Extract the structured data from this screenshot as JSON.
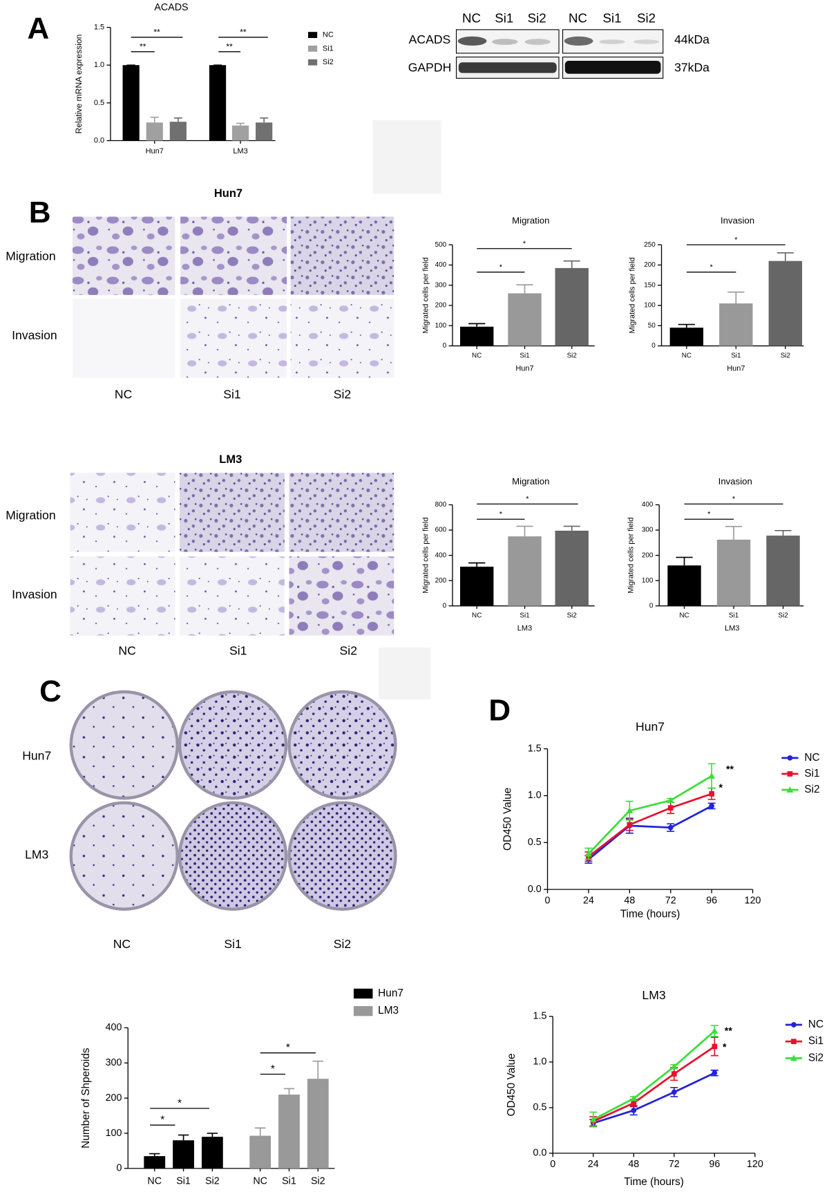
{
  "figure": {
    "panels": [
      "A",
      "B",
      "C",
      "D"
    ],
    "blot": {
      "lanes": [
        "NC",
        "Si1",
        "Si2",
        "NC",
        "Si1",
        "Si2"
      ],
      "proteins": [
        "ACADS",
        "GAPDH"
      ],
      "sizes": [
        "44kDa",
        "37kDa"
      ]
    },
    "transwell": [
      {
        "cell": "Hun7",
        "rows": [
          "Migration",
          "Invasion"
        ],
        "columns": [
          "NC",
          "Si1",
          "Si2"
        ]
      },
      {
        "cell": "LM3",
        "rows": [
          "Migration",
          "Invasion"
        ],
        "columns": [
          "NC",
          "Si1",
          "Si2"
        ]
      }
    ],
    "colony": {
      "rows": [
        "Hun7",
        "LM3"
      ],
      "columns": [
        "NC",
        "Si1",
        "Si2"
      ]
    }
  },
  "chart_data": [
    {
      "type": "bar",
      "title": "ACADS",
      "ylabel": "Relative mRNA  expression",
      "categories": [
        "Hun7",
        "LM3"
      ],
      "series": [
        {
          "name": "NC",
          "color": "#000000",
          "values": [
            1.0,
            1.0
          ],
          "errors": [
            0,
            0
          ]
        },
        {
          "name": "Si1",
          "color": "#a0a0a0",
          "values": [
            0.24,
            0.2
          ],
          "errors": [
            0.07,
            0.03
          ]
        },
        {
          "name": "Si2",
          "color": "#707070",
          "values": [
            0.25,
            0.24
          ],
          "errors": [
            0.05,
            0.06
          ]
        }
      ],
      "ylim": [
        0,
        1.5
      ],
      "yticks": [
        {
          "value": 0,
          "label": "0.0"
        },
        {
          "value": 0.5,
          "label": "0.5"
        },
        {
          "value": 1,
          "label": "1.0"
        },
        {
          "value": 1.5,
          "label": "1.5"
        }
      ],
      "annotations": [
        "**",
        "**",
        "**",
        "**"
      ],
      "legend": "right"
    },
    {
      "type": "bar",
      "title": "Migration",
      "xlabel": "Hun7",
      "ylabel": "Migrated cells per field",
      "categories": [
        "NC",
        "Si1",
        "Si2"
      ],
      "values": [
        95,
        260,
        385
      ],
      "errors": [
        15,
        42,
        35
      ],
      "colors": [
        "#000000",
        "#999999",
        "#666666"
      ],
      "ylim": [
        0,
        500
      ],
      "yticks": [
        0,
        100,
        200,
        300,
        400,
        500
      ],
      "annotations": [
        "*",
        "*"
      ]
    },
    {
      "type": "bar",
      "title": "Invasion",
      "xlabel": "Hun7",
      "ylabel": "Migrated cells per field",
      "categories": [
        "NC",
        "Si1",
        "Si2"
      ],
      "values": [
        45,
        105,
        210
      ],
      "errors": [
        8,
        28,
        20
      ],
      "colors": [
        "#000000",
        "#999999",
        "#666666"
      ],
      "ylim": [
        0,
        250
      ],
      "yticks": [
        0,
        50,
        100,
        150,
        200,
        250
      ],
      "annotations": [
        "*",
        "*"
      ]
    },
    {
      "type": "bar",
      "title": "Migration",
      "xlabel": "LM3",
      "ylabel": "Migrated cells per field",
      "categories": [
        "NC",
        "Si1",
        "Si2"
      ],
      "values": [
        310,
        550,
        595
      ],
      "errors": [
        30,
        80,
        35
      ],
      "colors": [
        "#000000",
        "#999999",
        "#666666"
      ],
      "ylim": [
        0,
        800
      ],
      "yticks": [
        0,
        200,
        400,
        600,
        800
      ],
      "annotations": [
        "*",
        "*"
      ]
    },
    {
      "type": "bar",
      "title": "Invasion",
      "xlabel": "LM3",
      "ylabel": "Migrated cells per field",
      "categories": [
        "NC",
        "Si1",
        "Si2"
      ],
      "values": [
        160,
        262,
        278
      ],
      "errors": [
        32,
        52,
        20
      ],
      "colors": [
        "#000000",
        "#999999",
        "#666666"
      ],
      "ylim": [
        0,
        400
      ],
      "yticks": [
        0,
        100,
        200,
        300,
        400
      ],
      "annotations": [
        "*",
        "*"
      ]
    },
    {
      "type": "bar",
      "ylabel": "Number of Shperoids",
      "categories": [
        "NC",
        "Si1",
        "Si2"
      ],
      "series": [
        {
          "name": "Hun7",
          "color": "#000000",
          "values": [
            35,
            80,
            90
          ],
          "errors": [
            7,
            15,
            10
          ]
        },
        {
          "name": "LM3",
          "color": "#999999",
          "values": [
            93,
            210,
            255
          ],
          "errors": [
            22,
            17,
            50
          ]
        }
      ],
      "ylim": [
        0,
        400
      ],
      "yticks": [
        0,
        100,
        200,
        300,
        400
      ],
      "annotations": [
        "*",
        "*",
        "*",
        "*"
      ],
      "legend": "top right"
    },
    {
      "type": "line",
      "title": "Hun7",
      "xlabel": "Time (hours)",
      "ylabel": "OD450 Value",
      "x": [
        24,
        48,
        72,
        96
      ],
      "series": [
        {
          "name": "NC",
          "color": "#2323d8",
          "marker": "circle",
          "values": [
            0.32,
            0.68,
            0.66,
            0.89
          ],
          "errors": [
            0.04,
            0.08,
            0.04,
            0.03
          ]
        },
        {
          "name": "Si1",
          "color": "#e8112d",
          "marker": "square",
          "values": [
            0.35,
            0.69,
            0.87,
            1.02
          ],
          "errors": [
            0.05,
            0.06,
            0.06,
            0.06
          ]
        },
        {
          "name": "Si2",
          "color": "#3ade3a",
          "marker": "triangle",
          "values": [
            0.38,
            0.84,
            0.95,
            1.21
          ],
          "errors": [
            0.06,
            0.1,
            0.02,
            0.13
          ]
        }
      ],
      "xlim": [
        0,
        120
      ],
      "xticks": [
        0,
        24,
        48,
        72,
        96,
        120
      ],
      "ylim": [
        0,
        1.5
      ],
      "yticks": [
        {
          "value": 0,
          "label": "0.0"
        },
        {
          "value": 0.5,
          "label": "0.5"
        },
        {
          "value": 1,
          "label": "1.0"
        },
        {
          "value": 1.5,
          "label": "1.5"
        }
      ],
      "annotations": [
        "**",
        "*"
      ],
      "legend": "right"
    },
    {
      "type": "line",
      "title": "LM3",
      "xlabel": "Time (hours)",
      "ylabel": "OD450 Value",
      "x": [
        24,
        48,
        72,
        96
      ],
      "series": [
        {
          "name": "NC",
          "color": "#2323d8",
          "marker": "circle",
          "values": [
            0.33,
            0.47,
            0.67,
            0.88
          ],
          "errors": [
            0.04,
            0.05,
            0.05,
            0.03
          ]
        },
        {
          "name": "Si1",
          "color": "#e8112d",
          "marker": "square",
          "values": [
            0.35,
            0.55,
            0.87,
            1.17
          ],
          "errors": [
            0.05,
            0.04,
            0.07,
            0.1
          ]
        },
        {
          "name": "Si2",
          "color": "#3ade3a",
          "marker": "triangle",
          "values": [
            0.37,
            0.6,
            0.95,
            1.34
          ],
          "errors": [
            0.08,
            0.02,
            0.02,
            0.06
          ]
        }
      ],
      "xlim": [
        0,
        120
      ],
      "xticks": [
        0,
        24,
        48,
        72,
        96,
        120
      ],
      "ylim": [
        0,
        1.5
      ],
      "yticks": [
        {
          "value": 0,
          "label": "0.0"
        },
        {
          "value": 0.5,
          "label": "0.5"
        },
        {
          "value": 1,
          "label": "1.0"
        },
        {
          "value": 1.5,
          "label": "1.5"
        }
      ],
      "annotations": [
        "**",
        "*"
      ],
      "legend": "right"
    }
  ]
}
